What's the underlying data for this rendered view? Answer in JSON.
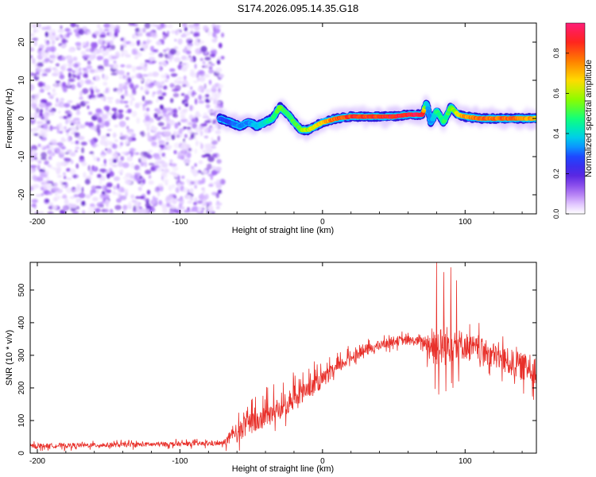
{
  "title": "S174.2026.095.14.35.G18",
  "colors": {
    "snr_line": "#e8302a",
    "axis": "#000000",
    "colormap": [
      "#ffffff",
      "#e6c8ff",
      "#9a5cf0",
      "#6a2fd0",
      "#2020ff",
      "#00c8ff",
      "#00ff80",
      "#80ff00",
      "#ffd000",
      "#ff6000",
      "#ff1a40",
      "#ff2080"
    ]
  },
  "chart_data": [
    {
      "type": "heatmap",
      "xlabel": "Height of straight line (km)",
      "ylabel": "Frequency (Hz)",
      "xlim": [
        -205,
        150
      ],
      "ylim": [
        -25,
        25
      ],
      "xticks": [
        -200,
        -100,
        0,
        100
      ],
      "yticks": [
        -20,
        -10,
        0,
        10,
        20
      ],
      "noise_region_x": [
        -205,
        -72
      ],
      "ridge": {
        "x": [
          -72,
          -65,
          -58,
          -52,
          -46,
          -40,
          -35,
          -30,
          -27,
          -24,
          -20,
          -15,
          -10,
          -5,
          0,
          10,
          20,
          30,
          40,
          50,
          60,
          70,
          73,
          76,
          80,
          85,
          90,
          95,
          100,
          110,
          120,
          130,
          140,
          150
        ],
        "freq": [
          0,
          -1,
          -2,
          -1,
          -2,
          -1,
          0,
          3,
          2,
          1,
          -1,
          -3,
          -3,
          -2,
          -1,
          0,
          0.5,
          0.5,
          0.5,
          0.5,
          1,
          1,
          4,
          -1,
          2,
          -1,
          3,
          1,
          0.5,
          0,
          0,
          0,
          0,
          0
        ],
        "amplitude": [
          0.3,
          0.3,
          0.35,
          0.35,
          0.4,
          0.45,
          0.5,
          0.6,
          0.55,
          0.5,
          0.55,
          0.6,
          0.65,
          0.7,
          0.75,
          0.85,
          0.9,
          0.9,
          0.92,
          0.95,
          0.95,
          0.95,
          0.4,
          0.35,
          0.5,
          0.5,
          0.55,
          0.7,
          0.8,
          0.85,
          0.85,
          0.85,
          0.8,
          0.75
        ]
      },
      "colorbar": {
        "label": "Normalized spectral amplitude",
        "range": [
          0,
          0.95
        ],
        "ticks": [
          0.0,
          0.2,
          0.4,
          0.6,
          0.8
        ],
        "tick_labels": [
          "0.0",
          "0.2",
          "0.4",
          "0.6",
          "0.8"
        ]
      }
    },
    {
      "type": "line",
      "xlabel": "Height of straight line (km)",
      "ylabel": "SNR (10 * v/v)",
      "xlim": [
        -205,
        150
      ],
      "ylim": [
        0,
        585
      ],
      "xticks": [
        -200,
        -100,
        0,
        100
      ],
      "yticks": [
        0,
        100,
        200,
        300,
        400,
        500
      ],
      "series": [
        {
          "name": "SNR",
          "trend_x": [
            -205,
            -150,
            -100,
            -70,
            -62,
            -55,
            -40,
            -30,
            -20,
            -10,
            0,
            10,
            20,
            30,
            40,
            50,
            60,
            70,
            78,
            80,
            90,
            100,
            110,
            120,
            130,
            140,
            150
          ],
          "trend_y": [
            22,
            25,
            28,
            30,
            55,
            80,
            110,
            130,
            165,
            195,
            225,
            260,
            295,
            315,
            330,
            345,
            345,
            342,
            330,
            320,
            335,
            330,
            315,
            300,
            280,
            265,
            255
          ],
          "noise_amp": [
            10,
            10,
            10,
            10,
            40,
            45,
            45,
            40,
            40,
            40,
            35,
            30,
            25,
            25,
            20,
            20,
            20,
            20,
            90,
            90,
            85,
            60,
            55,
            55,
            60,
            60,
            60
          ],
          "spikes": [
            {
              "x": 80,
              "y": 585
            },
            {
              "x": 81.5,
              "y": 180
            },
            {
              "x": 85,
              "y": 555
            },
            {
              "x": 86.5,
              "y": 190
            },
            {
              "x": 90,
              "y": 570
            },
            {
              "x": 91.5,
              "y": 200
            },
            {
              "x": 94,
              "y": 530
            },
            {
              "x": 95.5,
              "y": 220
            }
          ]
        }
      ]
    }
  ]
}
